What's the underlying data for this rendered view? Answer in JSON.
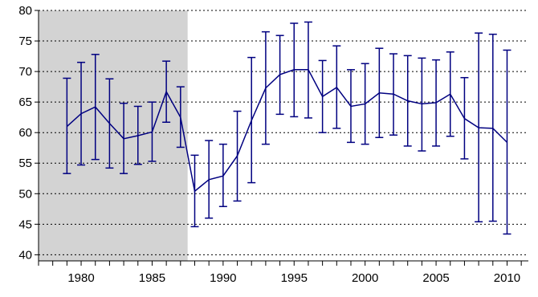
{
  "chart_data": {
    "type": "line",
    "title": "",
    "xlabel": "",
    "ylabel": "",
    "xlim": [
      1977,
      2011.5
    ],
    "ylim": [
      39,
      80
    ],
    "grid": "horizontal-dotted",
    "colors": {
      "series": "#000080",
      "shade": "#d3d3d3",
      "grid": "#000000"
    },
    "shaded_region": {
      "x_start": 1977,
      "x_end": 1987.5
    },
    "x_ticks": [
      1980,
      1985,
      1990,
      1995,
      2000,
      2005,
      2010
    ],
    "x_tick_labels": [
      "1980",
      "1985",
      "1990",
      "1995",
      "2000",
      "2005",
      "2010"
    ],
    "y_ticks": [
      40,
      45,
      50,
      55,
      60,
      65,
      70,
      75,
      80
    ],
    "y_tick_labels": [
      "40",
      "45",
      "50",
      "55",
      "60",
      "65",
      "70",
      "75",
      "80"
    ],
    "x": [
      1979,
      1980,
      1981,
      1982,
      1983,
      1984,
      1985,
      1986,
      1987,
      1988,
      1989,
      1990,
      1991,
      1992,
      1993,
      1994,
      1995,
      1996,
      1997,
      1998,
      1999,
      2000,
      2001,
      2002,
      2003,
      2004,
      2005,
      2006,
      2007,
      2008,
      2009,
      2010
    ],
    "series": [
      {
        "values": [
          61.0,
          63.1,
          64.2,
          61.5,
          59.0,
          59.5,
          60.1,
          66.7,
          62.5,
          50.4,
          52.3,
          52.9,
          56.2,
          62.0,
          67.3,
          69.5,
          70.3,
          70.3,
          65.9,
          67.4,
          64.3,
          64.7,
          66.5,
          66.3,
          65.2,
          64.7,
          64.9,
          66.3,
          62.3,
          60.8,
          60.7,
          58.4
        ],
        "lower": [
          53.3,
          54.7,
          55.6,
          54.2,
          53.3,
          54.8,
          55.3,
          61.7,
          57.6,
          44.6,
          46.0,
          47.9,
          48.8,
          51.8,
          58.1,
          63.0,
          62.6,
          62.4,
          60.0,
          60.7,
          58.4,
          58.1,
          59.2,
          59.6,
          57.8,
          57.0,
          57.8,
          59.4,
          55.7,
          45.4,
          45.5,
          43.4
        ],
        "upper": [
          68.9,
          71.5,
          72.8,
          68.8,
          64.8,
          64.3,
          65.0,
          71.7,
          67.5,
          56.3,
          58.7,
          58.1,
          63.5,
          72.3,
          76.5,
          75.9,
          77.9,
          78.1,
          71.8,
          74.2,
          70.3,
          71.3,
          73.8,
          72.9,
          72.6,
          72.2,
          71.9,
          73.2,
          69.0,
          76.3,
          76.1,
          73.5
        ]
      }
    ]
  }
}
